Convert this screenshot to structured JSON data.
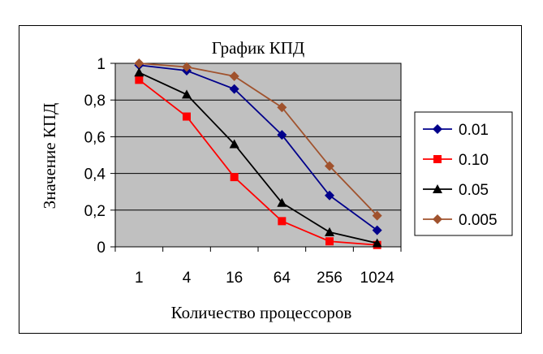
{
  "chart_data": {
    "type": "line",
    "title": "График КПД",
    "xlabel": "Количество процессоров",
    "ylabel": "Значение КПД",
    "categories": [
      "1",
      "4",
      "16",
      "64",
      "256",
      "1024"
    ],
    "ylim": [
      0,
      1
    ],
    "yticks": [
      "0",
      "0,2",
      "0,4",
      "0,6",
      "0,8",
      "1"
    ],
    "grid": true,
    "legend": "right",
    "plot_background": "#c0c0c0",
    "series": [
      {
        "name": "0.01",
        "color": "#00008b",
        "marker": "diamond",
        "values": [
          0.99,
          0.96,
          0.86,
          0.61,
          0.28,
          0.09
        ]
      },
      {
        "name": "0.10",
        "color": "#ff0000",
        "marker": "square",
        "values": [
          0.91,
          0.71,
          0.38,
          0.14,
          0.03,
          0.01
        ]
      },
      {
        "name": "0.05",
        "color": "#000000",
        "marker": "triangle",
        "values": [
          0.95,
          0.83,
          0.56,
          0.24,
          0.08,
          0.02
        ]
      },
      {
        "name": "0.005",
        "color": "#a0522d",
        "marker": "diamond",
        "values": [
          1.0,
          0.98,
          0.93,
          0.76,
          0.44,
          0.17
        ]
      }
    ]
  }
}
